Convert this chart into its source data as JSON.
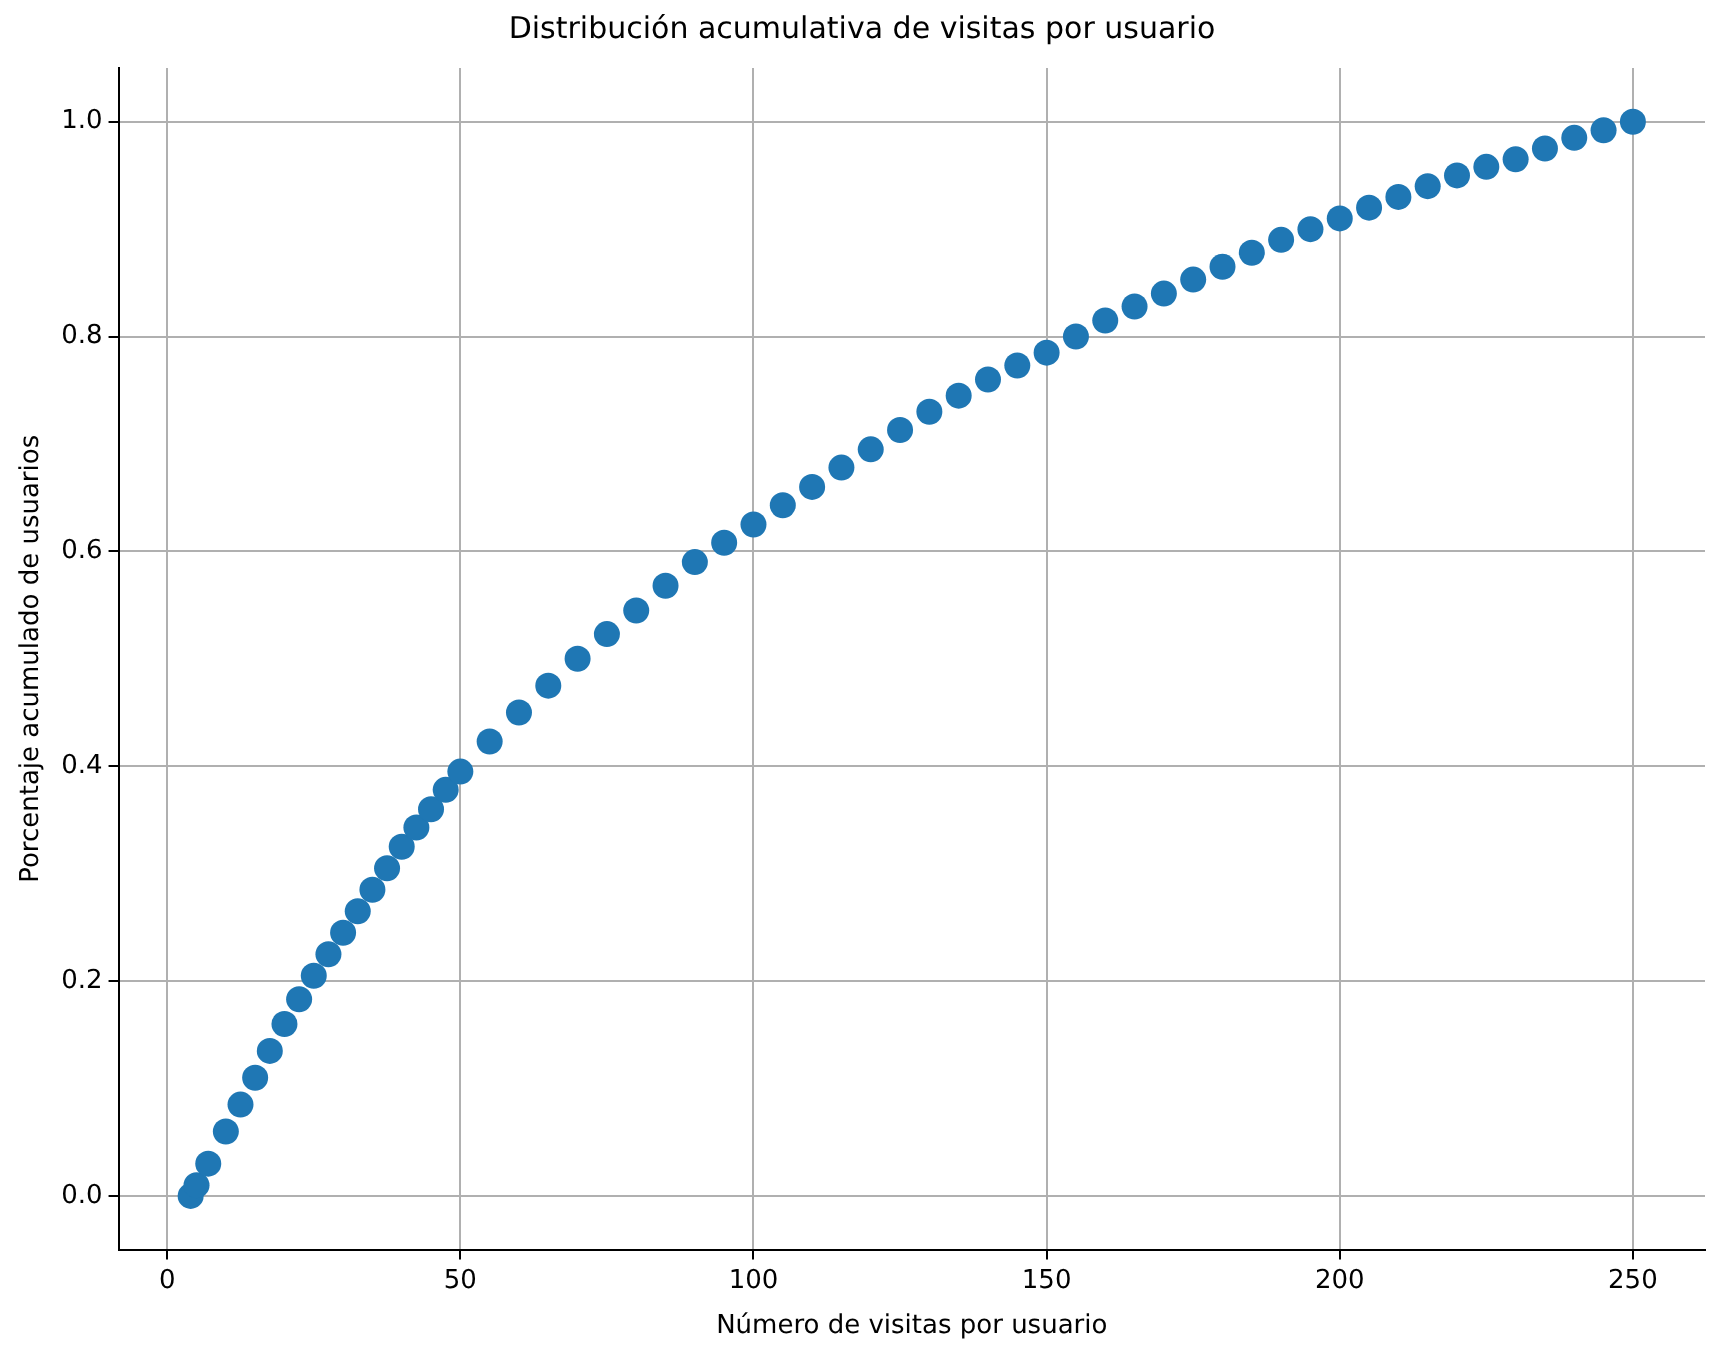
{
  "chart_data": {
    "type": "scatter",
    "title": "Distribución acumulativa de visitas por usuario",
    "xlabel": "Número de visitas por usuario",
    "ylabel": "Porcentaje acumulado de usuarios",
    "x": [
      4,
      5,
      7,
      10,
      12.5,
      15,
      17.5,
      20,
      22.5,
      25,
      27.5,
      30,
      32.5,
      35,
      37.5,
      40,
      42.5,
      45,
      47.5,
      50,
      55,
      60,
      65,
      70,
      75,
      80,
      85,
      90,
      95,
      100,
      105,
      110,
      115,
      120,
      125,
      130,
      135,
      140,
      145,
      150,
      155,
      160,
      165,
      170,
      175,
      180,
      185,
      190,
      195,
      200,
      205,
      210,
      215,
      220,
      225,
      230,
      235,
      240,
      245,
      250
    ],
    "series": [
      {
        "color": "#1f77b4",
        "values": [
          0.0,
          0.01,
          0.03,
          0.06,
          0.085,
          0.11,
          0.135,
          0.16,
          0.183,
          0.205,
          0.225,
          0.245,
          0.265,
          0.285,
          0.305,
          0.325,
          0.343,
          0.36,
          0.378,
          0.395,
          0.423,
          0.45,
          0.475,
          0.5,
          0.523,
          0.545,
          0.568,
          0.59,
          0.608,
          0.625,
          0.643,
          0.66,
          0.678,
          0.695,
          0.713,
          0.73,
          0.745,
          0.76,
          0.773,
          0.785,
          0.8,
          0.815,
          0.828,
          0.84,
          0.853,
          0.865,
          0.878,
          0.89,
          0.9,
          0.91,
          0.92,
          0.93,
          0.94,
          0.95,
          0.958,
          0.965,
          0.975,
          0.985,
          0.992,
          1.0
        ]
      }
    ],
    "xlim": [
      -8.3,
      262.3
    ],
    "xticks": [
      0,
      50,
      100,
      150,
      200,
      250
    ],
    "ylim": [
      -0.05,
      1.05
    ],
    "yticks": [
      {
        "value": 0,
        "label": "0.0"
      },
      {
        "value": 0.2,
        "label": "0.2"
      },
      {
        "value": 0.4,
        "label": "0.4"
      },
      {
        "value": 0.6,
        "label": "0.6"
      },
      {
        "value": 0.8,
        "label": "0.8"
      },
      {
        "value": 1,
        "label": "1.0"
      }
    ],
    "grid": true,
    "legend": false,
    "marker": "circle"
  }
}
